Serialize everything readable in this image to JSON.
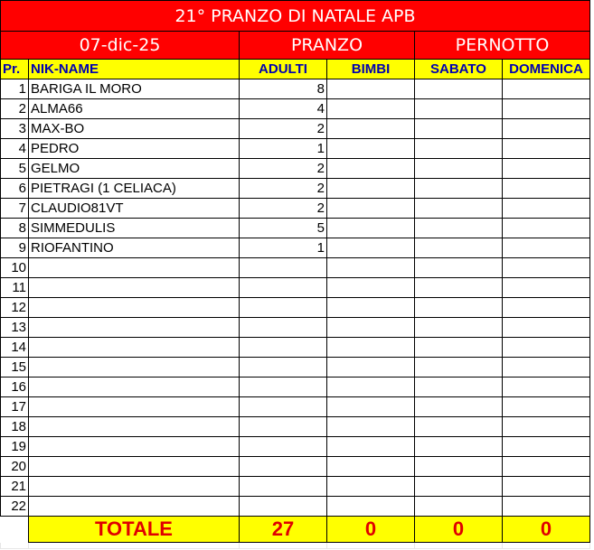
{
  "title": "21° PRANZO DI NATALE APB",
  "date": "07-dic-25",
  "groups": {
    "pranzo": "PRANZO",
    "pernotto": "PERNOTTO"
  },
  "headers": {
    "pr": "Pr.",
    "name": "NIK-NAME",
    "adulti": "ADULTI",
    "bimbi": "BIMBI",
    "sabato": "SABATO",
    "domenica": "DOMENICA"
  },
  "rows": [
    {
      "pr": "1",
      "name": "BARIGA IL MORO",
      "adulti": "8",
      "bimbi": "",
      "sabato": "",
      "domenica": ""
    },
    {
      "pr": "2",
      "name": "ALMA66",
      "adulti": "4",
      "bimbi": "",
      "sabato": "",
      "domenica": ""
    },
    {
      "pr": "3",
      "name": "MAX-BO",
      "adulti": "2",
      "bimbi": "",
      "sabato": "",
      "domenica": ""
    },
    {
      "pr": "4",
      "name": "PEDRO",
      "adulti": "1",
      "bimbi": "",
      "sabato": "",
      "domenica": ""
    },
    {
      "pr": "5",
      "name": "GELMO",
      "adulti": "2",
      "bimbi": "",
      "sabato": "",
      "domenica": ""
    },
    {
      "pr": "6",
      "name": "PIETRAGI  (1 CELIACA)",
      "adulti": "2",
      "bimbi": "",
      "sabato": "",
      "domenica": ""
    },
    {
      "pr": "7",
      "name": "CLAUDIO81VT",
      "adulti": "2",
      "bimbi": "",
      "sabato": "",
      "domenica": ""
    },
    {
      "pr": "8",
      "name": "SIMMEDULIS",
      "adulti": "5",
      "bimbi": "",
      "sabato": "",
      "domenica": ""
    },
    {
      "pr": "9",
      "name": "RIOFANTINO",
      "adulti": "1",
      "bimbi": "",
      "sabato": "",
      "domenica": ""
    },
    {
      "pr": "10",
      "name": "",
      "adulti": "",
      "bimbi": "",
      "sabato": "",
      "domenica": ""
    },
    {
      "pr": "11",
      "name": "",
      "adulti": "",
      "bimbi": "",
      "sabato": "",
      "domenica": ""
    },
    {
      "pr": "12",
      "name": "",
      "adulti": "",
      "bimbi": "",
      "sabato": "",
      "domenica": ""
    },
    {
      "pr": "13",
      "name": "",
      "adulti": "",
      "bimbi": "",
      "sabato": "",
      "domenica": ""
    },
    {
      "pr": "14",
      "name": "",
      "adulti": "",
      "bimbi": "",
      "sabato": "",
      "domenica": ""
    },
    {
      "pr": "15",
      "name": "",
      "adulti": "",
      "bimbi": "",
      "sabato": "",
      "domenica": ""
    },
    {
      "pr": "16",
      "name": "",
      "adulti": "",
      "bimbi": "",
      "sabato": "",
      "domenica": ""
    },
    {
      "pr": "17",
      "name": "",
      "adulti": "",
      "bimbi": "",
      "sabato": "",
      "domenica": ""
    },
    {
      "pr": "18",
      "name": "",
      "adulti": "",
      "bimbi": "",
      "sabato": "",
      "domenica": ""
    },
    {
      "pr": "19",
      "name": "",
      "adulti": "",
      "bimbi": "",
      "sabato": "",
      "domenica": ""
    },
    {
      "pr": "20",
      "name": "",
      "adulti": "",
      "bimbi": "",
      "sabato": "",
      "domenica": ""
    },
    {
      "pr": "21",
      "name": "",
      "adulti": "",
      "bimbi": "",
      "sabato": "",
      "domenica": ""
    },
    {
      "pr": "22",
      "name": "",
      "adulti": "",
      "bimbi": "",
      "sabato": "",
      "domenica": ""
    }
  ],
  "totals": {
    "label": "TOTALE",
    "adulti": "27",
    "bimbi": "0",
    "sabato": "0",
    "domenica": "0"
  },
  "colors": {
    "title_bg": "#ff0000",
    "header_bg": "#ffff00",
    "header_text": "#0000b0",
    "total_text": "#e00000"
  }
}
